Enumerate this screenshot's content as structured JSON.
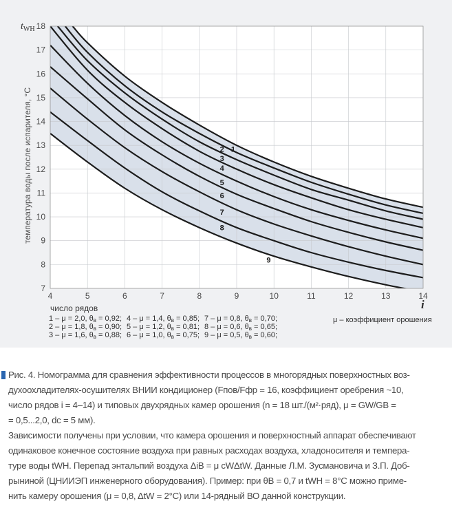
{
  "chart_data": {
    "type": "line",
    "title": "",
    "ylabel_main": "t",
    "ylabel_main_sub": "WH",
    "ylabel_rotated": "температура воды после испарителя, °С",
    "xlabel": "число рядов",
    "x_symbol": "i",
    "xlim": [
      4,
      14
    ],
    "ylim": [
      7,
      18
    ],
    "x_ticks": [
      "4",
      "5",
      "6",
      "7",
      "8",
      "9",
      "10",
      "11",
      "12",
      "13",
      "14"
    ],
    "y_ticks": [
      "7",
      "8",
      "9",
      "10",
      "11",
      "12",
      "13",
      "14",
      "15",
      "16",
      "17",
      "18"
    ],
    "series": [
      {
        "name": "1",
        "x": [
          4.6,
          5,
          6,
          7,
          8,
          9,
          10,
          11,
          12,
          13,
          14
        ],
        "values": [
          18.0,
          17.3,
          15.9,
          14.8,
          13.85,
          13.0,
          12.3,
          11.7,
          11.2,
          10.75,
          10.4
        ]
      },
      {
        "name": "2",
        "x": [
          4.4,
          5,
          6,
          7,
          8,
          9,
          10,
          11,
          12,
          13,
          14
        ],
        "values": [
          18.0,
          16.9,
          15.5,
          14.4,
          13.5,
          12.7,
          12.05,
          11.45,
          10.95,
          10.5,
          10.15
        ]
      },
      {
        "name": "3",
        "x": [
          4.2,
          5,
          6,
          7,
          8,
          9,
          10,
          11,
          12,
          13,
          14
        ],
        "values": [
          18.0,
          16.55,
          15.2,
          14.1,
          13.15,
          12.4,
          11.75,
          11.15,
          10.7,
          10.25,
          9.9
        ]
      },
      {
        "name": "4",
        "x": [
          4.0,
          5,
          6,
          7,
          8,
          9,
          10,
          11,
          12,
          13,
          14
        ],
        "values": [
          18.0,
          16.15,
          14.8,
          13.7,
          12.75,
          12.0,
          11.35,
          10.8,
          10.3,
          9.9,
          9.55
        ]
      },
      {
        "name": "5",
        "x": [
          4.0,
          5,
          6,
          7,
          8,
          9,
          10,
          11,
          12,
          13,
          14
        ],
        "values": [
          17.2,
          15.6,
          14.25,
          13.15,
          12.25,
          11.5,
          10.85,
          10.3,
          9.85,
          9.45,
          9.1
        ]
      },
      {
        "name": "6",
        "x": [
          4.0,
          5,
          6,
          7,
          8,
          9,
          10,
          11,
          12,
          13,
          14
        ],
        "values": [
          16.3,
          14.95,
          13.65,
          12.6,
          11.7,
          10.95,
          10.35,
          9.8,
          9.35,
          8.95,
          8.6
        ]
      },
      {
        "name": "7",
        "x": [
          4.0,
          5,
          6,
          7,
          8,
          9,
          10,
          11,
          12,
          13,
          14
        ],
        "values": [
          15.4,
          14.1,
          12.9,
          11.9,
          11.05,
          10.3,
          9.7,
          9.2,
          8.75,
          8.35,
          8.0
        ]
      },
      {
        "name": "8",
        "x": [
          4.0,
          5,
          6,
          7,
          8,
          9,
          10,
          11,
          12,
          13,
          14
        ],
        "values": [
          14.4,
          13.2,
          12.05,
          11.05,
          10.25,
          9.55,
          9.0,
          8.5,
          8.1,
          7.75,
          7.45
        ]
      },
      {
        "name": "9",
        "x": [
          4.0,
          5,
          6,
          7,
          8,
          9,
          10,
          11,
          12,
          13,
          14
        ],
        "values": [
          13.5,
          12.3,
          11.2,
          10.3,
          9.55,
          8.9,
          8.35,
          7.9,
          7.5,
          7.15,
          6.85
        ]
      }
    ],
    "curve_labels": [
      {
        "label": "1",
        "x": 8.85,
        "y": 12.85
      },
      {
        "label": "2",
        "x": 8.55,
        "y": 12.85
      },
      {
        "label": "3",
        "x": 8.55,
        "y": 12.45
      },
      {
        "label": "4",
        "x": 8.55,
        "y": 12.05
      },
      {
        "label": "5",
        "x": 8.55,
        "y": 11.45
      },
      {
        "label": "6",
        "x": 8.55,
        "y": 10.9
      },
      {
        "label": "7",
        "x": 8.55,
        "y": 10.2
      },
      {
        "label": "8",
        "x": 8.55,
        "y": 9.55
      },
      {
        "label": "9",
        "x": 9.8,
        "y": 8.2
      }
    ],
    "legend": [
      [
        "1 – μ = 2,0, θ",
        "в",
        " = 0,92;"
      ],
      [
        "2 – μ = 1,8, θ",
        "в",
        " = 0,90;"
      ],
      [
        "3 – μ = 1,6, θ",
        "в",
        " = 0,88;"
      ],
      [
        "4 – μ = 1,4, θ",
        "в",
        " = 0,85;"
      ],
      [
        "5 – μ = 1,2, θ",
        "в",
        " = 0,81;"
      ],
      [
        "6 – μ = 1,0, θ",
        "в",
        " = 0,75;"
      ],
      [
        "7 – μ = 0,8, θ",
        "в",
        " = 0,70;"
      ],
      [
        "8 – μ = 0,6, θ",
        "в",
        " = 0,65;"
      ],
      [
        "9 – μ = 0,5, θ",
        "в",
        " = 0,60;"
      ]
    ],
    "mu_note": "μ – коэффициент орошения",
    "colors": {
      "curve": "#1c1c1c",
      "band": "#d9e0ea",
      "grid": "#c6c8cc",
      "axis": "#9a9a9a"
    }
  },
  "caption": {
    "marker_color": "#2a66b0",
    "lines_p1": [
      "Рис. 4. Номограмма для сравнения эффективности процессов в многорядных поверхностных воз-",
      "духоохладителях-осушителях ВНИИ кондиционер (Fпов/Fфр = 16, коэффициент оребрения ~10,",
      "число рядов i = 4–14) и типовых двухрядных камер орошения (n = 18 шт./(м²·ряд), μ = GW/GB =",
      "= 0,5...2,0, dc = 5 мм)."
    ],
    "lines_p2": [
      "Зависимости получены при условии, что камера орошения и поверхностный аппарат обеспечивают",
      "одинаковое конечное состояние воздуха при равных расходах воздуха, хладоносителя и темпера-",
      "туре воды tWH. Перепад энтальпий воздуха ΔiB = μ cWΔtW. Данные Л.М. Зусмановича и З.П. Доб-",
      "рыниной (ЦНИИЭП инженерного оборудования). Пример: при θB = 0,7 и tWH = 8°С можно приме-",
      "нить камеру орошения (μ = 0,8, ΔtW = 2°С) или 14-рядный ВО данной конструкции."
    ]
  }
}
